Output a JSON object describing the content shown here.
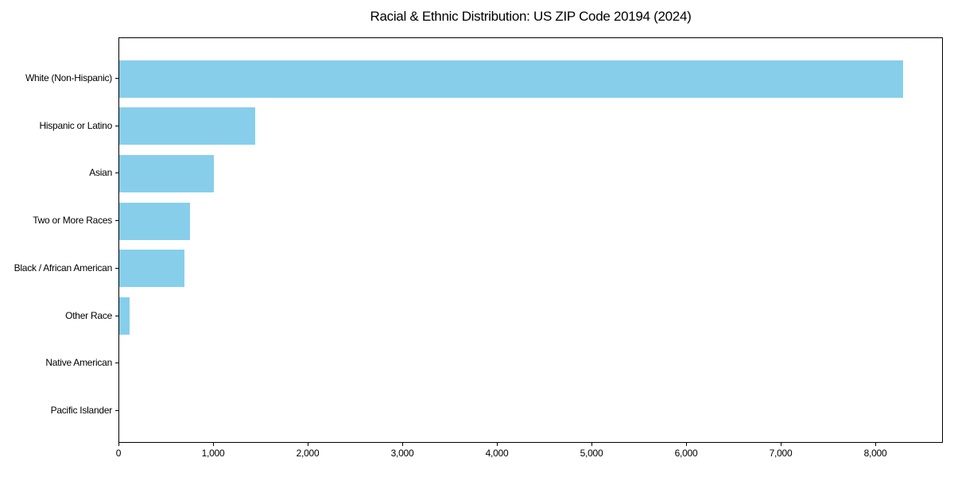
{
  "chart_data": {
    "type": "bar",
    "orientation": "horizontal",
    "title": "Racial & Ethnic Distribution: US ZIP Code 20194 (2024)",
    "categories": [
      "White (Non-Hispanic)",
      "Hispanic or Latino",
      "Asian",
      "Two or More Races",
      "Black / African American",
      "Other Race",
      "Native American",
      "Pacific Islander"
    ],
    "values": [
      8285,
      1440,
      1000,
      748,
      687,
      106,
      0,
      0
    ],
    "xlabel": "",
    "ylabel": "",
    "xlim": [
      0,
      8700
    ],
    "x_ticks": [
      0,
      1000,
      2000,
      3000,
      4000,
      5000,
      6000,
      7000,
      8000
    ],
    "x_tick_labels": [
      "0",
      "1,000",
      "2,000",
      "3,000",
      "4,000",
      "5,000",
      "6,000",
      "7,000",
      "8,000"
    ],
    "bar_color": "#87CEEB",
    "axis_color": "#000000",
    "text_color": "#000000",
    "background_color": "#ffffff",
    "grid": false,
    "legend_position": "none"
  }
}
